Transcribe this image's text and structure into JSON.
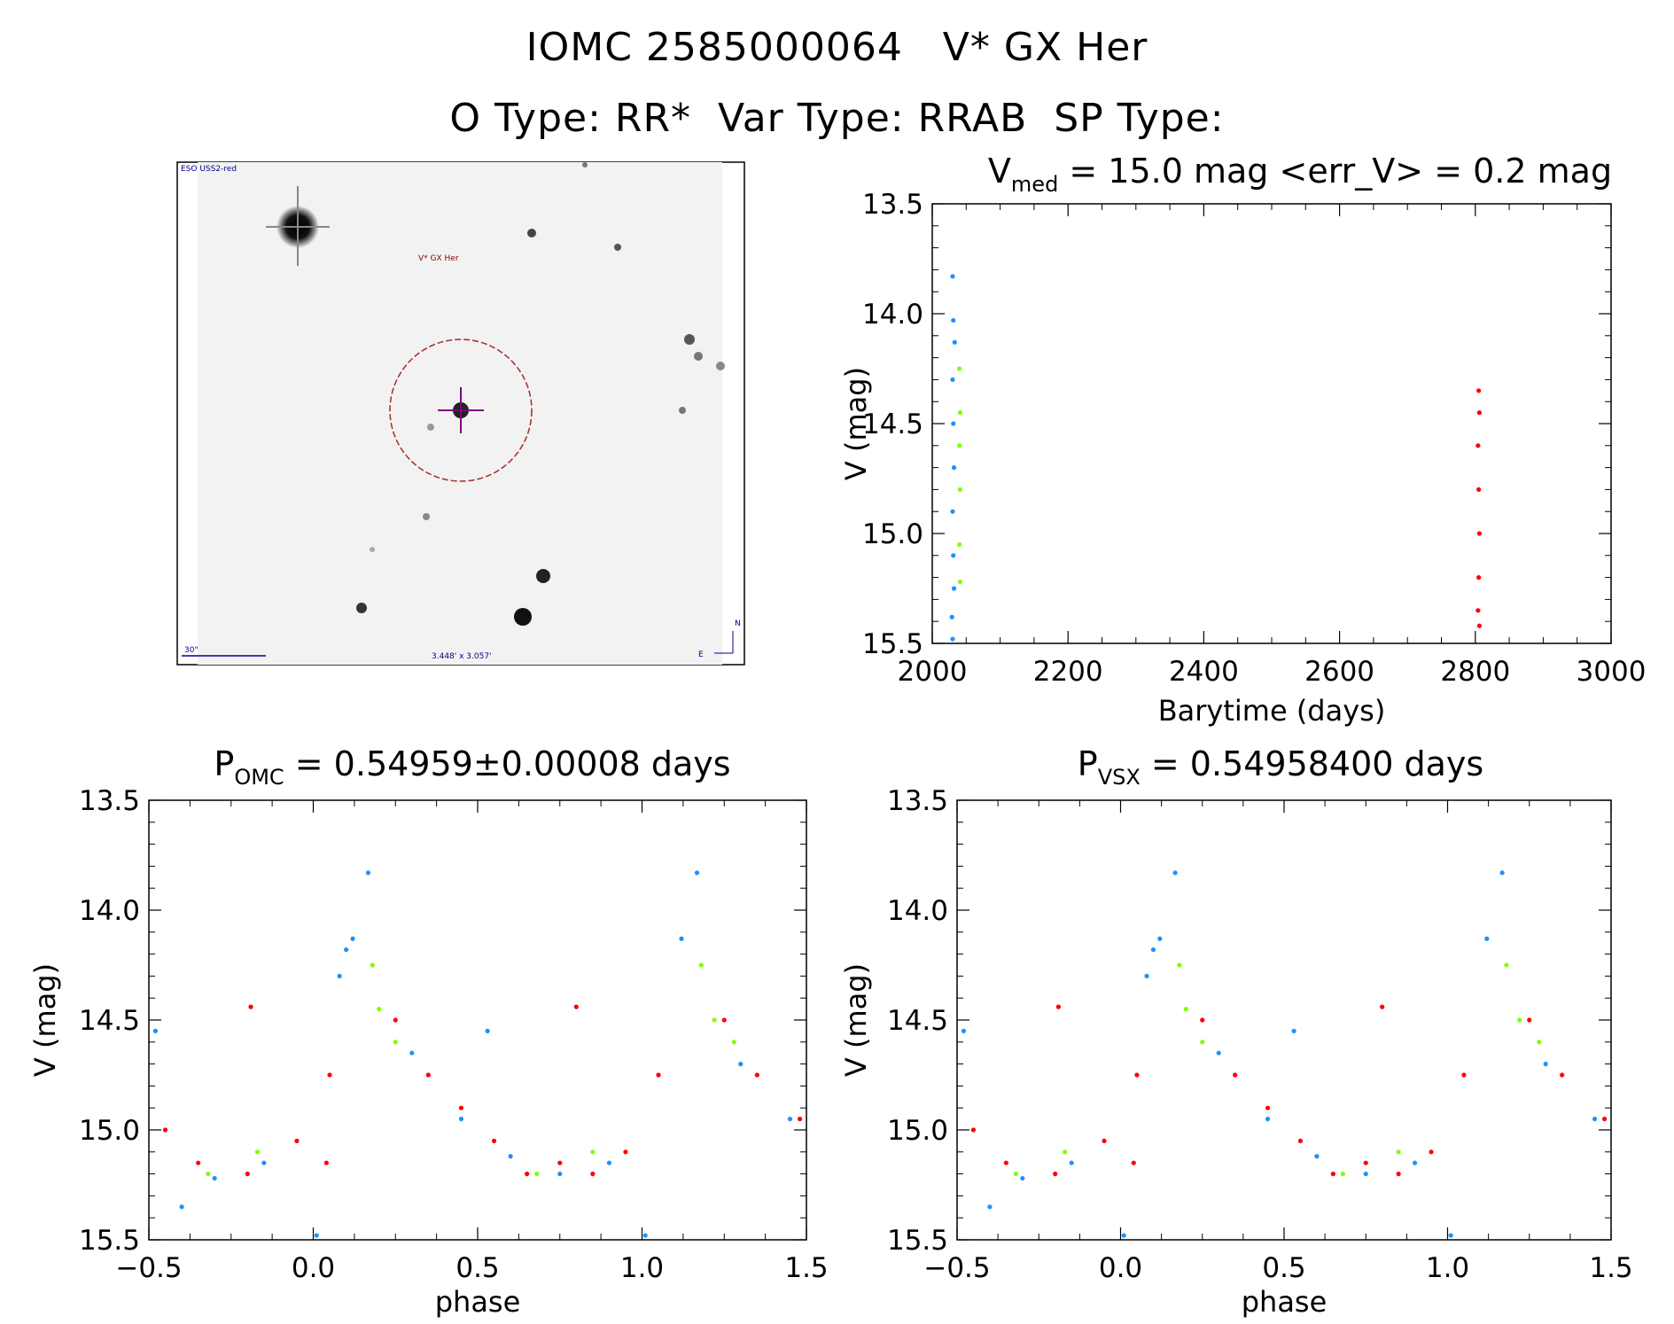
{
  "header": {
    "line1": "IOMC 2585000064   V* GX Her",
    "line2": "O Type: RR*  Var Type: RRAB  SP Type:"
  },
  "image_panel": {
    "survey_label": "ESO USS2-red",
    "object_label": "V* GX Her",
    "scale_label": "30\"",
    "fov_label": "3.448' x 3.057'",
    "compass_n": "N",
    "compass_e": "E"
  },
  "colors": {
    "blue": "#1e90ff",
    "green": "#7fff00",
    "red": "#ff0000",
    "axis": "#000000"
  },
  "chart_data": [
    {
      "id": "lightcurve",
      "type": "scatter",
      "title": {
        "base": "V",
        "sub": "med",
        "rest": " = 15.0 mag <err_V> = 0.2 mag"
      },
      "xlabel": "Barytime (days)",
      "ylabel": "V (mag)",
      "xlim": [
        2000,
        3000
      ],
      "ylim": [
        15.5,
        13.5
      ],
      "xticks": [
        "2000",
        "2200",
        "2400",
        "2600",
        "2800",
        "3000"
      ],
      "yticks": [
        "13.5",
        "14.0",
        "14.5",
        "15.0",
        "15.5"
      ],
      "series": [
        {
          "name": "blue",
          "color": "blue",
          "points": [
            [
              2030,
              13.83
            ],
            [
              2031,
              14.03
            ],
            [
              2030,
              15.48
            ],
            [
              2029,
              15.38
            ],
            [
              2033,
              14.13
            ],
            [
              2030,
              14.3
            ],
            [
              2031,
              14.5
            ],
            [
              2032,
              14.7
            ],
            [
              2030,
              14.9
            ],
            [
              2031,
              15.1
            ],
            [
              2032,
              15.25
            ]
          ]
        },
        {
          "name": "green",
          "color": "green",
          "points": [
            [
              2040,
              14.25
            ],
            [
              2041,
              14.45
            ],
            [
              2040,
              14.6
            ],
            [
              2041,
              14.8
            ],
            [
              2040,
              15.05
            ],
            [
              2041,
              15.22
            ]
          ]
        },
        {
          "name": "red",
          "color": "red",
          "points": [
            [
              2805,
              14.35
            ],
            [
              2806,
              14.45
            ],
            [
              2804,
              14.6
            ],
            [
              2805,
              14.8
            ],
            [
              2806,
              15.0
            ],
            [
              2805,
              15.2
            ],
            [
              2804,
              15.35
            ],
            [
              2806,
              15.42
            ]
          ]
        }
      ]
    },
    {
      "id": "phase-omc",
      "type": "scatter",
      "title": {
        "base": "P",
        "sub": "OMC",
        "rest": " = 0.54959±0.00008 days"
      },
      "xlabel": "phase",
      "ylabel": "V (mag)",
      "xlim": [
        -0.5,
        1.5
      ],
      "ylim": [
        15.5,
        13.5
      ],
      "xticks": [
        "−0.5",
        "0.0",
        "0.5",
        "1.0",
        "1.5"
      ],
      "yticks": [
        "13.5",
        "14.0",
        "14.5",
        "15.0",
        "15.5"
      ],
      "series": [
        {
          "name": "blue",
          "color": "blue",
          "points": [
            [
              0.167,
              13.83
            ],
            [
              0.12,
              14.13
            ],
            [
              0.1,
              14.18
            ],
            [
              0.08,
              14.3
            ],
            [
              0.53,
              14.55
            ],
            [
              0.01,
              15.48
            ],
            [
              -0.48,
              14.55
            ],
            [
              -0.4,
              15.35
            ],
            [
              0.3,
              14.65
            ],
            [
              0.45,
              14.95
            ],
            [
              0.6,
              15.12
            ],
            [
              0.75,
              15.2
            ],
            [
              0.9,
              15.15
            ],
            [
              -0.3,
              15.22
            ],
            [
              -0.15,
              15.15
            ],
            [
              1.167,
              13.83
            ],
            [
              1.12,
              14.13
            ],
            [
              1.01,
              15.48
            ],
            [
              1.3,
              14.7
            ],
            [
              1.45,
              14.95
            ]
          ]
        },
        {
          "name": "green",
          "color": "green",
          "points": [
            [
              0.18,
              14.25
            ],
            [
              0.2,
              14.45
            ],
            [
              0.25,
              14.6
            ],
            [
              0.68,
              15.2
            ],
            [
              0.85,
              15.1
            ],
            [
              -0.32,
              15.2
            ],
            [
              -0.17,
              15.1
            ],
            [
              1.18,
              14.25
            ],
            [
              1.22,
              14.5
            ],
            [
              1.28,
              14.6
            ]
          ]
        },
        {
          "name": "red",
          "color": "red",
          "points": [
            [
              -0.19,
              14.44
            ],
            [
              0.8,
              14.44
            ],
            [
              0.05,
              14.75
            ],
            [
              0.04,
              15.15
            ],
            [
              0.25,
              14.5
            ],
            [
              0.35,
              14.75
            ],
            [
              0.45,
              14.9
            ],
            [
              0.55,
              15.05
            ],
            [
              0.65,
              15.2
            ],
            [
              0.75,
              15.15
            ],
            [
              0.85,
              15.2
            ],
            [
              0.95,
              15.1
            ],
            [
              -0.45,
              15.0
            ],
            [
              -0.35,
              15.15
            ],
            [
              -0.2,
              15.2
            ],
            [
              -0.05,
              15.05
            ],
            [
              1.05,
              14.75
            ],
            [
              1.25,
              14.5
            ],
            [
              1.35,
              14.75
            ],
            [
              1.48,
              14.95
            ]
          ]
        }
      ]
    },
    {
      "id": "phase-vsx",
      "type": "scatter",
      "title": {
        "base": "P",
        "sub": "VSX",
        "rest": " = 0.54958400 days"
      },
      "xlabel": "phase",
      "ylabel": "V (mag)",
      "xlim": [
        -0.5,
        1.5
      ],
      "ylim": [
        15.5,
        13.5
      ],
      "xticks": [
        "−0.5",
        "0.0",
        "0.5",
        "1.0",
        "1.5"
      ],
      "yticks": [
        "13.5",
        "14.0",
        "14.5",
        "15.0",
        "15.5"
      ],
      "series": [
        {
          "name": "blue",
          "color": "blue",
          "points": [
            [
              0.167,
              13.83
            ],
            [
              0.12,
              14.13
            ],
            [
              0.1,
              14.18
            ],
            [
              0.08,
              14.3
            ],
            [
              0.53,
              14.55
            ],
            [
              0.01,
              15.48
            ],
            [
              -0.48,
              14.55
            ],
            [
              -0.4,
              15.35
            ],
            [
              0.3,
              14.65
            ],
            [
              0.45,
              14.95
            ],
            [
              0.6,
              15.12
            ],
            [
              0.75,
              15.2
            ],
            [
              0.9,
              15.15
            ],
            [
              -0.3,
              15.22
            ],
            [
              -0.15,
              15.15
            ],
            [
              1.167,
              13.83
            ],
            [
              1.12,
              14.13
            ],
            [
              1.01,
              15.48
            ],
            [
              1.3,
              14.7
            ],
            [
              1.45,
              14.95
            ]
          ]
        },
        {
          "name": "green",
          "color": "green",
          "points": [
            [
              0.18,
              14.25
            ],
            [
              0.2,
              14.45
            ],
            [
              0.25,
              14.6
            ],
            [
              0.68,
              15.2
            ],
            [
              0.85,
              15.1
            ],
            [
              -0.32,
              15.2
            ],
            [
              -0.17,
              15.1
            ],
            [
              1.18,
              14.25
            ],
            [
              1.22,
              14.5
            ],
            [
              1.28,
              14.6
            ]
          ]
        },
        {
          "name": "red",
          "color": "red",
          "points": [
            [
              -0.19,
              14.44
            ],
            [
              0.8,
              14.44
            ],
            [
              0.05,
              14.75
            ],
            [
              0.04,
              15.15
            ],
            [
              0.25,
              14.5
            ],
            [
              0.35,
              14.75
            ],
            [
              0.45,
              14.9
            ],
            [
              0.55,
              15.05
            ],
            [
              0.65,
              15.2
            ],
            [
              0.75,
              15.15
            ],
            [
              0.85,
              15.2
            ],
            [
              0.95,
              15.1
            ],
            [
              -0.45,
              15.0
            ],
            [
              -0.35,
              15.15
            ],
            [
              -0.2,
              15.2
            ],
            [
              -0.05,
              15.05
            ],
            [
              1.05,
              14.75
            ],
            [
              1.25,
              14.5
            ],
            [
              1.35,
              14.75
            ],
            [
              1.48,
              14.95
            ]
          ]
        }
      ]
    }
  ]
}
